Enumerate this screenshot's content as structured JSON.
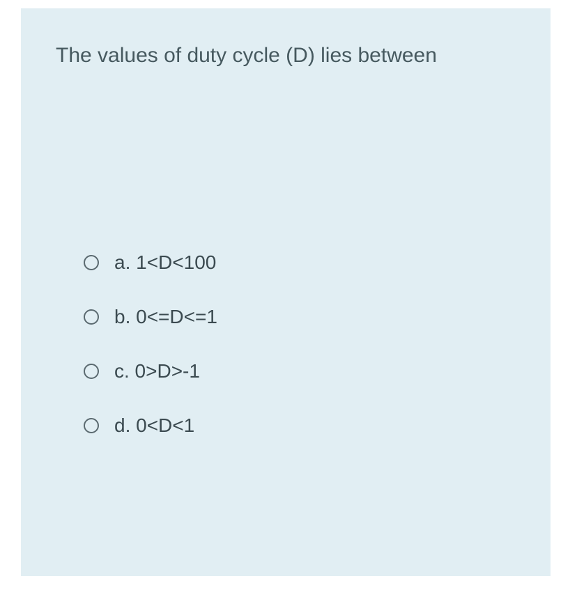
{
  "card": {
    "background_color": "#e1eef3",
    "question_text": "The values of duty cycle (D) lies between",
    "question_color": "#46595f",
    "question_fontsize": 30,
    "option_color": "#3b4a50",
    "option_fontsize": 28,
    "option_gap": 46,
    "radio": {
      "size": 22,
      "border_width": 2,
      "border_color": "#5b6a70",
      "fill_selected": "#5b6a70",
      "margin_right": 22
    },
    "options": [
      {
        "key": "a",
        "text": "a. 1<D<100",
        "selected": false
      },
      {
        "key": "b",
        "text": "b. 0<=D<=1",
        "selected": false
      },
      {
        "key": "c",
        "text": "c. 0>D>-1",
        "selected": false
      },
      {
        "key": "d",
        "text": "d. 0<D<1",
        "selected": false
      }
    ]
  }
}
